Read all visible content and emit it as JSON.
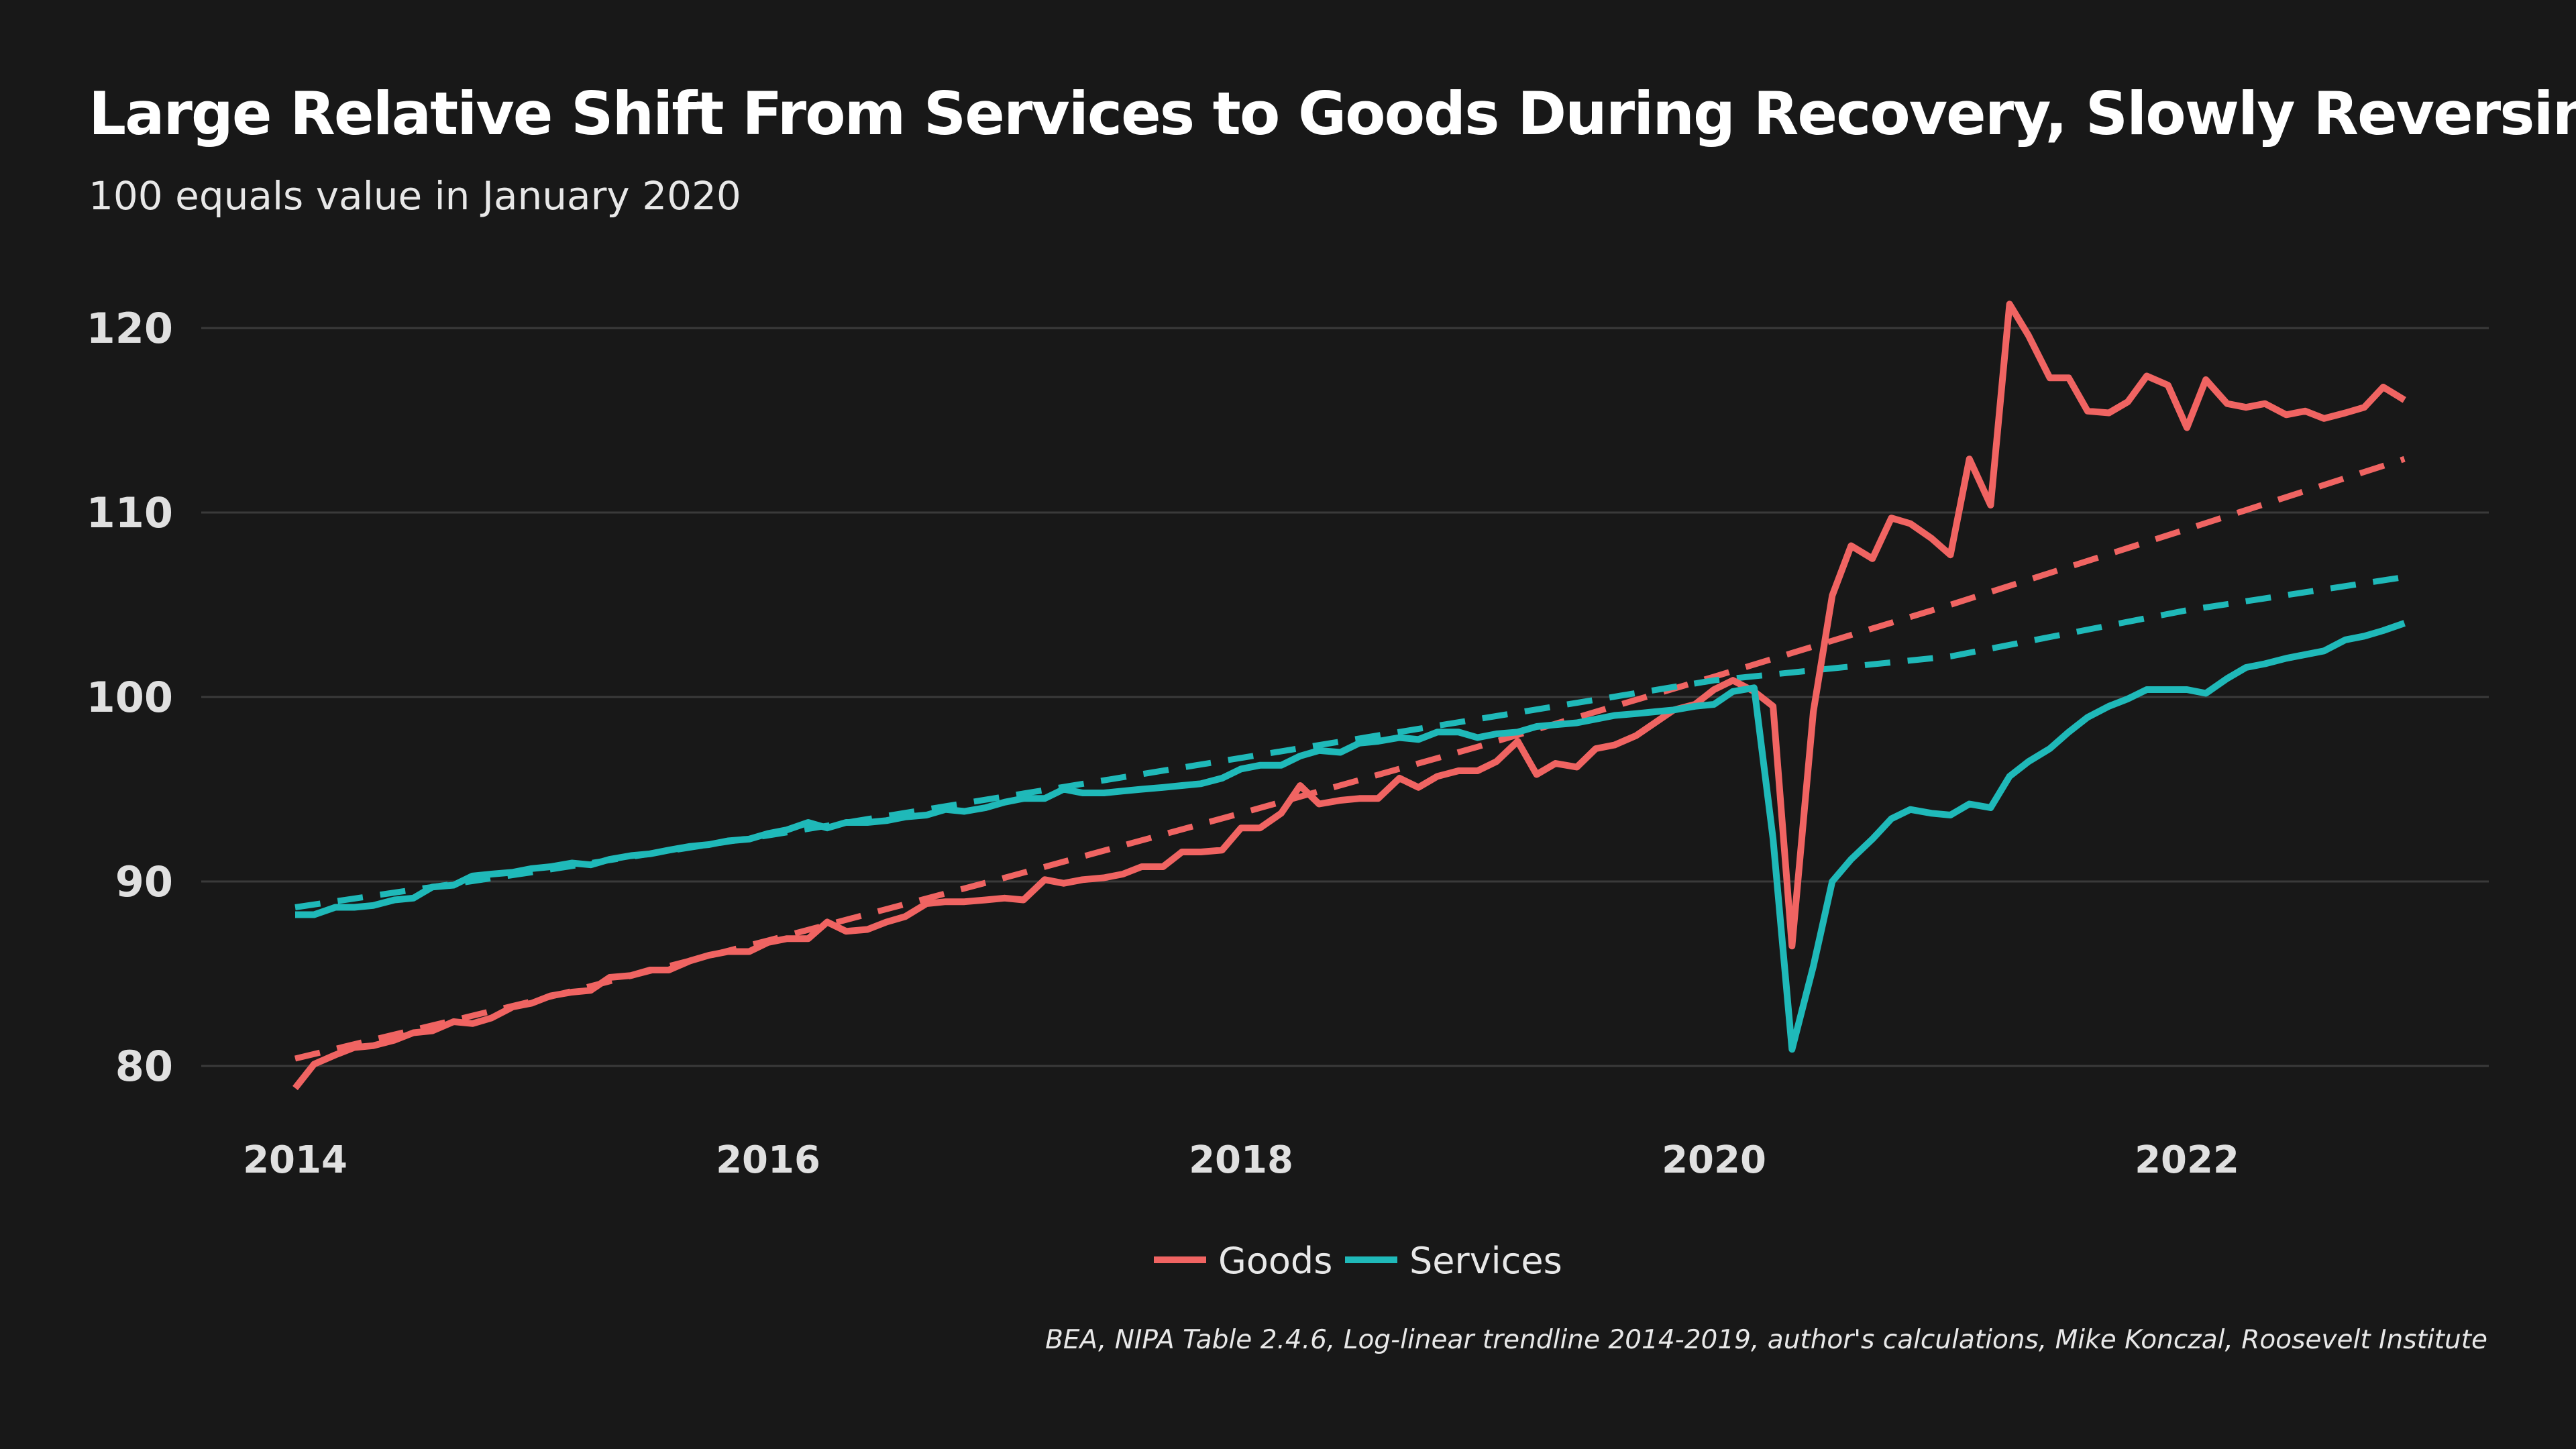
{
  "chart_data": {
    "type": "line",
    "title": "Large Relative Shift From Services to Goods During Recovery, Slowly Reversing",
    "subtitle": "100 equals value in January 2020",
    "caption": "BEA, NIPA Table 2.4.6, Log-linear trendline 2014-2019, author's calculations, Mike Konczal, Roosevelt Institute",
    "xlabel": "",
    "ylabel": "",
    "x_axis": {
      "type": "year",
      "ticks": [
        2014,
        2016,
        2018,
        2020,
        2022
      ],
      "tick_labels": [
        "2014",
        "2016",
        "2018",
        "2020",
        "2022"
      ],
      "range": [
        2013.7,
        2023.0
      ]
    },
    "y_axis": {
      "ticks": [
        80,
        90,
        100,
        110,
        120
      ],
      "tick_labels": [
        "80",
        "90",
        "100",
        "110",
        "120"
      ],
      "range": [
        77,
        124
      ]
    },
    "grid": true,
    "legend": {
      "position": "bottom-center",
      "entries": [
        "Goods",
        "Services"
      ]
    },
    "colors": {
      "Goods": "#f06462",
      "Services": "#1fb9b9",
      "background": "#181818",
      "grid": "#3a3a3a"
    },
    "series": [
      {
        "name": "Goods",
        "style": "solid",
        "color": "#f06462",
        "points": [
          [
            2014.0,
            78.8
          ],
          [
            2014.08,
            80.1
          ],
          [
            2014.17,
            80.6
          ],
          [
            2014.25,
            81.0
          ],
          [
            2014.33,
            81.1
          ],
          [
            2014.42,
            81.4
          ],
          [
            2014.5,
            81.8
          ],
          [
            2014.58,
            81.9
          ],
          [
            2014.67,
            82.4
          ],
          [
            2014.75,
            82.3
          ],
          [
            2014.83,
            82.6
          ],
          [
            2014.92,
            83.2
          ],
          [
            2015.0,
            83.4
          ],
          [
            2015.08,
            83.8
          ],
          [
            2015.17,
            84.0
          ],
          [
            2015.25,
            84.1
          ],
          [
            2015.33,
            84.8
          ],
          [
            2015.42,
            84.9
          ],
          [
            2015.5,
            85.2
          ],
          [
            2015.58,
            85.2
          ],
          [
            2015.67,
            85.7
          ],
          [
            2015.75,
            86.0
          ],
          [
            2015.83,
            86.2
          ],
          [
            2015.92,
            86.2
          ],
          [
            2016.0,
            86.7
          ],
          [
            2016.08,
            86.9
          ],
          [
            2016.17,
            86.9
          ],
          [
            2016.25,
            87.8
          ],
          [
            2016.33,
            87.3
          ],
          [
            2016.42,
            87.4
          ],
          [
            2016.5,
            87.8
          ],
          [
            2016.58,
            88.1
          ],
          [
            2016.67,
            88.8
          ],
          [
            2016.75,
            88.9
          ],
          [
            2016.83,
            88.9
          ],
          [
            2016.92,
            89.0
          ],
          [
            2017.0,
            89.1
          ],
          [
            2017.08,
            89.0
          ],
          [
            2017.17,
            90.1
          ],
          [
            2017.25,
            89.9
          ],
          [
            2017.33,
            90.1
          ],
          [
            2017.42,
            90.2
          ],
          [
            2017.5,
            90.4
          ],
          [
            2017.58,
            90.8
          ],
          [
            2017.67,
            90.8
          ],
          [
            2017.75,
            91.6
          ],
          [
            2017.83,
            91.6
          ],
          [
            2017.92,
            91.7
          ],
          [
            2018.0,
            92.9
          ],
          [
            2018.08,
            92.9
          ],
          [
            2018.17,
            93.7
          ],
          [
            2018.25,
            95.2
          ],
          [
            2018.33,
            94.2
          ],
          [
            2018.42,
            94.4
          ],
          [
            2018.5,
            94.5
          ],
          [
            2018.58,
            94.5
          ],
          [
            2018.67,
            95.6
          ],
          [
            2018.75,
            95.1
          ],
          [
            2018.83,
            95.7
          ],
          [
            2018.92,
            96.0
          ],
          [
            2019.0,
            96.0
          ],
          [
            2019.08,
            96.5
          ],
          [
            2019.17,
            97.6
          ],
          [
            2019.25,
            95.8
          ],
          [
            2019.33,
            96.4
          ],
          [
            2019.42,
            96.2
          ],
          [
            2019.5,
            97.2
          ],
          [
            2019.58,
            97.4
          ],
          [
            2019.67,
            97.9
          ],
          [
            2019.75,
            98.6
          ],
          [
            2019.83,
            99.3
          ],
          [
            2019.92,
            99.6
          ],
          [
            2020.0,
            100.4
          ],
          [
            2020.08,
            100.9
          ],
          [
            2020.17,
            100.3
          ],
          [
            2020.25,
            99.5
          ],
          [
            2020.33,
            86.5
          ],
          [
            2020.42,
            99.2
          ],
          [
            2020.5,
            105.5
          ],
          [
            2020.58,
            108.2
          ],
          [
            2020.67,
            107.5
          ],
          [
            2020.75,
            109.7
          ],
          [
            2020.83,
            109.4
          ],
          [
            2020.92,
            108.6
          ],
          [
            2021.0,
            107.7
          ],
          [
            2021.08,
            112.9
          ],
          [
            2021.17,
            110.4
          ],
          [
            2021.25,
            121.3
          ],
          [
            2021.33,
            119.6
          ],
          [
            2021.42,
            117.3
          ],
          [
            2021.5,
            117.3
          ],
          [
            2021.58,
            115.5
          ],
          [
            2021.67,
            115.4
          ],
          [
            2021.75,
            116.0
          ],
          [
            2021.83,
            117.4
          ],
          [
            2021.92,
            116.9
          ],
          [
            2022.0,
            114.6
          ],
          [
            2022.08,
            117.2
          ],
          [
            2022.17,
            115.9
          ],
          [
            2022.25,
            115.7
          ],
          [
            2022.33,
            115.9
          ],
          [
            2022.42,
            115.3
          ],
          [
            2022.5,
            115.5
          ],
          [
            2022.58,
            115.1
          ],
          [
            2022.67,
            115.4
          ],
          [
            2022.75,
            115.7
          ],
          [
            2022.83,
            116.8
          ],
          [
            2022.92,
            116.1
          ]
        ]
      },
      {
        "name": "Services",
        "style": "solid",
        "color": "#1fb9b9",
        "points": [
          [
            2014.0,
            88.2
          ],
          [
            2014.08,
            88.2
          ],
          [
            2014.17,
            88.6
          ],
          [
            2014.25,
            88.6
          ],
          [
            2014.33,
            88.7
          ],
          [
            2014.42,
            89.0
          ],
          [
            2014.5,
            89.1
          ],
          [
            2014.58,
            89.7
          ],
          [
            2014.67,
            89.8
          ],
          [
            2014.75,
            90.3
          ],
          [
            2014.83,
            90.4
          ],
          [
            2014.92,
            90.5
          ],
          [
            2015.0,
            90.7
          ],
          [
            2015.08,
            90.8
          ],
          [
            2015.17,
            91.0
          ],
          [
            2015.25,
            90.9
          ],
          [
            2015.33,
            91.2
          ],
          [
            2015.42,
            91.4
          ],
          [
            2015.5,
            91.5
          ],
          [
            2015.58,
            91.7
          ],
          [
            2015.67,
            91.9
          ],
          [
            2015.75,
            92.0
          ],
          [
            2015.83,
            92.2
          ],
          [
            2015.92,
            92.3
          ],
          [
            2016.0,
            92.6
          ],
          [
            2016.08,
            92.8
          ],
          [
            2016.17,
            93.2
          ],
          [
            2016.25,
            92.9
          ],
          [
            2016.33,
            93.2
          ],
          [
            2016.42,
            93.2
          ],
          [
            2016.5,
            93.3
          ],
          [
            2016.58,
            93.5
          ],
          [
            2016.67,
            93.6
          ],
          [
            2016.75,
            93.9
          ],
          [
            2016.83,
            93.8
          ],
          [
            2016.92,
            94.0
          ],
          [
            2017.0,
            94.3
          ],
          [
            2017.08,
            94.5
          ],
          [
            2017.17,
            94.5
          ],
          [
            2017.25,
            95.0
          ],
          [
            2017.33,
            94.8
          ],
          [
            2017.42,
            94.8
          ],
          [
            2017.5,
            94.9
          ],
          [
            2017.58,
            95.0
          ],
          [
            2017.67,
            95.1
          ],
          [
            2017.75,
            95.2
          ],
          [
            2017.83,
            95.3
          ],
          [
            2017.92,
            95.6
          ],
          [
            2018.0,
            96.1
          ],
          [
            2018.08,
            96.3
          ],
          [
            2018.17,
            96.3
          ],
          [
            2018.25,
            96.8
          ],
          [
            2018.33,
            97.1
          ],
          [
            2018.42,
            97.0
          ],
          [
            2018.5,
            97.5
          ],
          [
            2018.58,
            97.6
          ],
          [
            2018.67,
            97.8
          ],
          [
            2018.75,
            97.7
          ],
          [
            2018.83,
            98.1
          ],
          [
            2018.92,
            98.1
          ],
          [
            2019.0,
            97.8
          ],
          [
            2019.08,
            98.0
          ],
          [
            2019.17,
            98.1
          ],
          [
            2019.25,
            98.4
          ],
          [
            2019.33,
            98.5
          ],
          [
            2019.42,
            98.6
          ],
          [
            2019.5,
            98.8
          ],
          [
            2019.58,
            99.0
          ],
          [
            2019.67,
            99.1
          ],
          [
            2019.75,
            99.2
          ],
          [
            2019.83,
            99.3
          ],
          [
            2019.92,
            99.5
          ],
          [
            2020.0,
            99.6
          ],
          [
            2020.08,
            100.3
          ],
          [
            2020.17,
            100.5
          ],
          [
            2020.25,
            92.3
          ],
          [
            2020.33,
            80.9
          ],
          [
            2020.42,
            85.4
          ],
          [
            2020.5,
            90.0
          ],
          [
            2020.58,
            91.2
          ],
          [
            2020.67,
            92.3
          ],
          [
            2020.75,
            93.4
          ],
          [
            2020.83,
            93.9
          ],
          [
            2020.92,
            93.7
          ],
          [
            2021.0,
            93.6
          ],
          [
            2021.08,
            94.2
          ],
          [
            2021.17,
            94.0
          ],
          [
            2021.25,
            95.7
          ],
          [
            2021.33,
            96.5
          ],
          [
            2021.42,
            97.2
          ],
          [
            2021.5,
            98.1
          ],
          [
            2021.58,
            98.9
          ],
          [
            2021.67,
            99.5
          ],
          [
            2021.75,
            99.9
          ],
          [
            2021.83,
            100.4
          ],
          [
            2021.92,
            100.4
          ],
          [
            2022.0,
            100.4
          ],
          [
            2022.08,
            100.2
          ],
          [
            2022.17,
            101.0
          ],
          [
            2022.25,
            101.6
          ],
          [
            2022.33,
            101.8
          ],
          [
            2022.42,
            102.1
          ],
          [
            2022.5,
            102.3
          ],
          [
            2022.58,
            102.5
          ],
          [
            2022.67,
            103.1
          ],
          [
            2022.75,
            103.3
          ],
          [
            2022.83,
            103.6
          ],
          [
            2022.92,
            104.0
          ]
        ]
      },
      {
        "name": "Goods trend",
        "style": "dashed",
        "color": "#f06462",
        "points": [
          [
            2014.0,
            80.4
          ],
          [
            2015.0,
            83.5
          ],
          [
            2016.0,
            86.8
          ],
          [
            2017.0,
            90.2
          ],
          [
            2018.0,
            93.7
          ],
          [
            2019.0,
            97.3
          ],
          [
            2020.0,
            101.1
          ],
          [
            2021.0,
            105.0
          ],
          [
            2022.0,
            109.1
          ],
          [
            2022.92,
            112.9
          ]
        ]
      },
      {
        "name": "Services trend",
        "style": "dashed",
        "color": "#1fb9b9",
        "points": [
          [
            2014.0,
            88.6
          ],
          [
            2015.0,
            90.5
          ],
          [
            2016.0,
            92.5
          ],
          [
            2017.0,
            94.6
          ],
          [
            2018.0,
            96.7
          ],
          [
            2019.0,
            98.8
          ],
          [
            2020.0,
            100.9
          ],
          [
            2021.0,
            102.2
          ],
          [
            2022.0,
            104.7
          ],
          [
            2022.92,
            106.5
          ]
        ]
      }
    ]
  }
}
